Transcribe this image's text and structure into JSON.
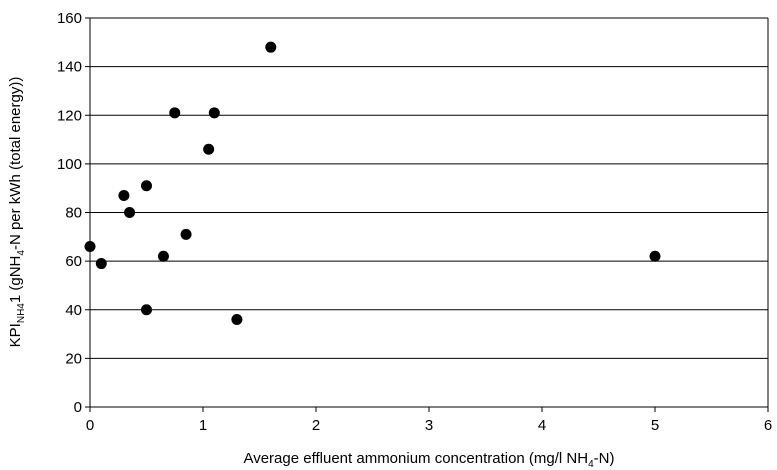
{
  "chart_data": {
    "type": "scatter",
    "xlabel_parts": [
      "Average effluent ammonium concentration (mg/l NH",
      "4",
      "-N)"
    ],
    "ylabel_parts": [
      "KPI",
      "NH4",
      "1 (gNH",
      "4",
      "-N per kWh (total energy))"
    ],
    "xlim": [
      0,
      6
    ],
    "ylim": [
      0,
      160
    ],
    "x_ticks": [
      0,
      1,
      2,
      3,
      4,
      5,
      6
    ],
    "y_ticks": [
      0,
      20,
      40,
      60,
      80,
      100,
      120,
      140,
      160
    ],
    "grid": "horizontal major gridlines",
    "marker_color": "#000000",
    "points": [
      {
        "x": 0.0,
        "y": 66
      },
      {
        "x": 0.1,
        "y": 59
      },
      {
        "x": 0.3,
        "y": 87
      },
      {
        "x": 0.35,
        "y": 80
      },
      {
        "x": 0.5,
        "y": 91
      },
      {
        "x": 0.5,
        "y": 40
      },
      {
        "x": 0.65,
        "y": 62
      },
      {
        "x": 0.75,
        "y": 121
      },
      {
        "x": 0.85,
        "y": 71
      },
      {
        "x": 1.05,
        "y": 106
      },
      {
        "x": 1.1,
        "y": 121
      },
      {
        "x": 1.3,
        "y": 36
      },
      {
        "x": 1.6,
        "y": 148
      },
      {
        "x": 5.0,
        "y": 62
      }
    ]
  }
}
